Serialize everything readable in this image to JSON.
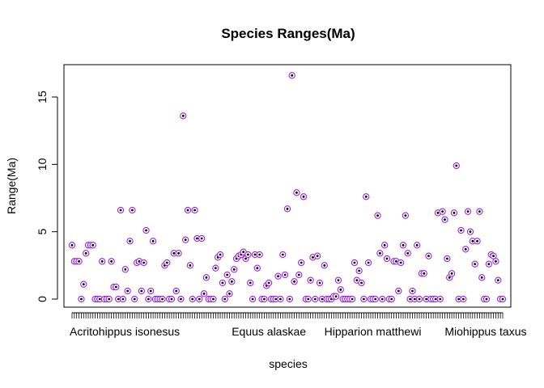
{
  "chart_data": {
    "type": "scatter",
    "title": "Species Ranges(Ma)",
    "xlabel": "species",
    "ylabel": "Range(Ma)",
    "ylim": [
      -0.6,
      17.4
    ],
    "y_ticks": [
      0,
      5,
      10,
      15
    ],
    "y_tick_labels": [
      "0",
      "5",
      "10",
      "15"
    ],
    "x_tick_labels": [
      {
        "index": 1,
        "label": "Acritohippus isonesus"
      },
      {
        "index": 71,
        "label": "Equus alaskae"
      },
      {
        "index": 111,
        "label": "Hipparion matthewi"
      },
      {
        "index": 163,
        "label": "Miohippus taxus"
      }
    ],
    "n_categories": 187,
    "point_outer_color": "#a020f0",
    "point_inner_color": "#000000",
    "grid": false,
    "legend": "none",
    "values": [
      4.0,
      2.8,
      2.8,
      2.8,
      0.0,
      1.1,
      3.4,
      4.0,
      4.0,
      4.0,
      0.0,
      0.0,
      0.0,
      2.8,
      0.0,
      0.0,
      0.0,
      2.8,
      0.9,
      0.9,
      0.0,
      6.6,
      0.0,
      2.2,
      0.6,
      4.3,
      6.6,
      0.0,
      2.7,
      2.8,
      0.6,
      2.7,
      5.1,
      0.0,
      0.6,
      4.3,
      0.0,
      0.0,
      0.0,
      0.0,
      2.5,
      2.7,
      0.0,
      0.0,
      3.4,
      0.6,
      3.4,
      0.0,
      13.6,
      4.4,
      6.6,
      2.5,
      0.0,
      6.6,
      4.5,
      0.0,
      4.5,
      0.4,
      1.6,
      0.0,
      0.0,
      0.0,
      2.3,
      3.1,
      3.3,
      1.2,
      0.0,
      1.8,
      0.4,
      1.3,
      2.2,
      3.0,
      3.2,
      3.3,
      3.5,
      3.0,
      3.3,
      1.2,
      0.0,
      3.3,
      2.3,
      3.3,
      0.0,
      0.0,
      1.0,
      1.2,
      0.0,
      0.0,
      0.0,
      1.7,
      0.0,
      3.3,
      1.8,
      6.7,
      0.0,
      16.6,
      1.3,
      7.9,
      1.8,
      2.7,
      7.6,
      0.0,
      0.0,
      1.4,
      3.1,
      0.0,
      3.2,
      1.2,
      0.0,
      2.5,
      0.0,
      0.0,
      0.0,
      0.2,
      0.2,
      1.4,
      0.7,
      0.0,
      0.0,
      0.0,
      0.0,
      0.0,
      2.7,
      1.4,
      2.1,
      1.2,
      0.0,
      7.6,
      2.7,
      0.0,
      0.0,
      0.0,
      6.2,
      3.4,
      0.0,
      4.0,
      3.0,
      0.0,
      0.0,
      2.8,
      2.8,
      0.6,
      2.7,
      4.0,
      6.2,
      3.4,
      0.0,
      0.6,
      0.0,
      4.0,
      0.0,
      1.9,
      1.9,
      0.0,
      3.2,
      0.0,
      0.0,
      0.0,
      6.4,
      0.0,
      6.5,
      5.9,
      3.0,
      1.6,
      1.9,
      6.4,
      9.9,
      0.0,
      5.1,
      0.0,
      3.7,
      6.5,
      5.0,
      4.3,
      2.6,
      4.3,
      6.5,
      1.6,
      0.0,
      0.0,
      2.6,
      3.3,
      3.2,
      2.8,
      1.4,
      0.0,
      0.0
    ]
  }
}
